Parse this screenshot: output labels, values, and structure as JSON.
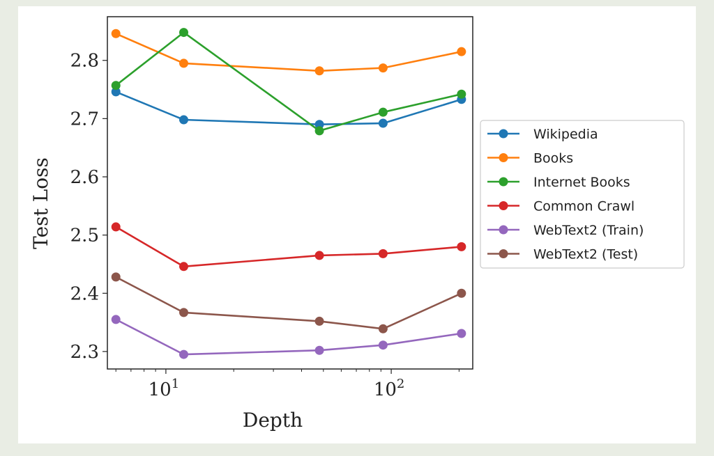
{
  "chart_data": {
    "type": "line",
    "xlabel": "Depth",
    "ylabel": "Test Loss",
    "xscale": "log",
    "xlim": [
      5.5,
      230
    ],
    "ylim": [
      2.27,
      2.875
    ],
    "x": [
      6,
      12,
      48,
      92,
      205
    ],
    "xticks": [
      {
        "value": 10,
        "base": "10",
        "exp": "1"
      },
      {
        "value": 100,
        "base": "10",
        "exp": "2"
      }
    ],
    "yticks": [
      {
        "value": 2.3,
        "label": "2.3"
      },
      {
        "value": 2.4,
        "label": "2.4"
      },
      {
        "value": 2.5,
        "label": "2.5"
      },
      {
        "value": 2.6,
        "label": "2.6"
      },
      {
        "value": 2.7,
        "label": "2.7"
      },
      {
        "value": 2.8,
        "label": "2.8"
      }
    ],
    "grid": false,
    "legend_position": "outside-right",
    "series": [
      {
        "name": "Wikipedia",
        "color": "#1f77b4",
        "values": [
          2.746,
          2.698,
          2.69,
          2.692,
          2.733
        ]
      },
      {
        "name": "Books",
        "color": "#ff7f0e",
        "values": [
          2.846,
          2.795,
          2.782,
          2.787,
          2.815
        ]
      },
      {
        "name": "Internet Books",
        "color": "#2ca02c",
        "values": [
          2.757,
          2.848,
          2.679,
          2.711,
          2.742
        ]
      },
      {
        "name": "Common Crawl",
        "color": "#d62728",
        "values": [
          2.514,
          2.446,
          2.465,
          2.468,
          2.48
        ]
      },
      {
        "name": "WebText2 (Train)",
        "color": "#9467bd",
        "values": [
          2.355,
          2.295,
          2.302,
          2.311,
          2.331
        ]
      },
      {
        "name": "WebText2 (Test)",
        "color": "#8c564b",
        "values": [
          2.428,
          2.367,
          2.352,
          2.339,
          2.4
        ]
      }
    ]
  }
}
